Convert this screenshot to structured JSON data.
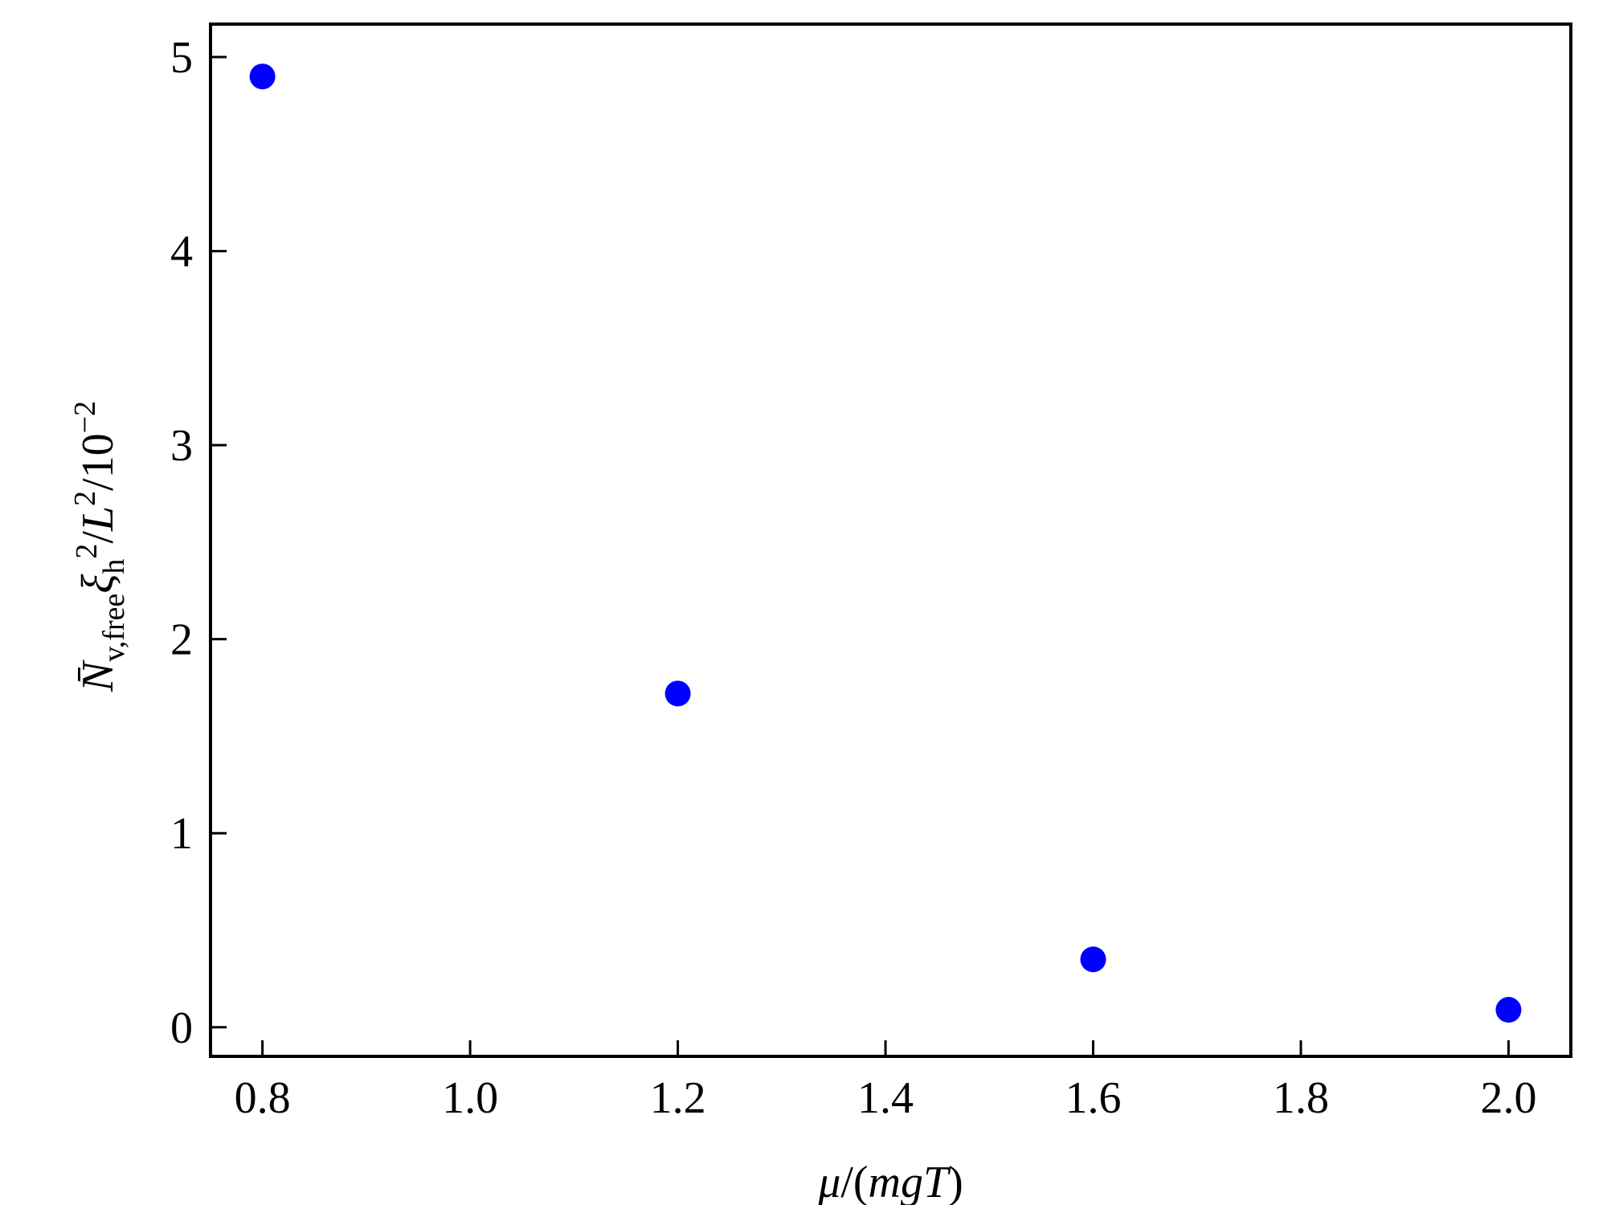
{
  "chart_data": {
    "type": "scatter",
    "title": "",
    "xlabel_parts": [
      {
        "text": "μ",
        "style": "italic"
      },
      {
        "text": "/(",
        "style": "normal"
      },
      {
        "text": "mgT",
        "style": "italic"
      },
      {
        "text": ")",
        "style": "normal"
      }
    ],
    "xlabel": "μ/(mgT)",
    "ylabel": "N̄v,freeξh²/L²/10⁻²",
    "xlim": [
      0.75,
      2.06
    ],
    "ylim": [
      -0.15,
      5.17
    ],
    "x_ticks": [
      "0.8",
      "1.0",
      "1.2",
      "1.4",
      "1.6",
      "1.8",
      "2.0"
    ],
    "y_ticks": [
      "0",
      "1",
      "2",
      "3",
      "4",
      "5"
    ],
    "grid": false,
    "legend": "none",
    "series": [
      {
        "color": "#0000ff",
        "marker": "circle",
        "points": [
          {
            "x": 0.8,
            "y": 4.9
          },
          {
            "x": 1.2,
            "y": 1.72
          },
          {
            "x": 1.6,
            "y": 0.35
          },
          {
            "x": 2.0,
            "y": 0.09
          }
        ]
      }
    ]
  }
}
